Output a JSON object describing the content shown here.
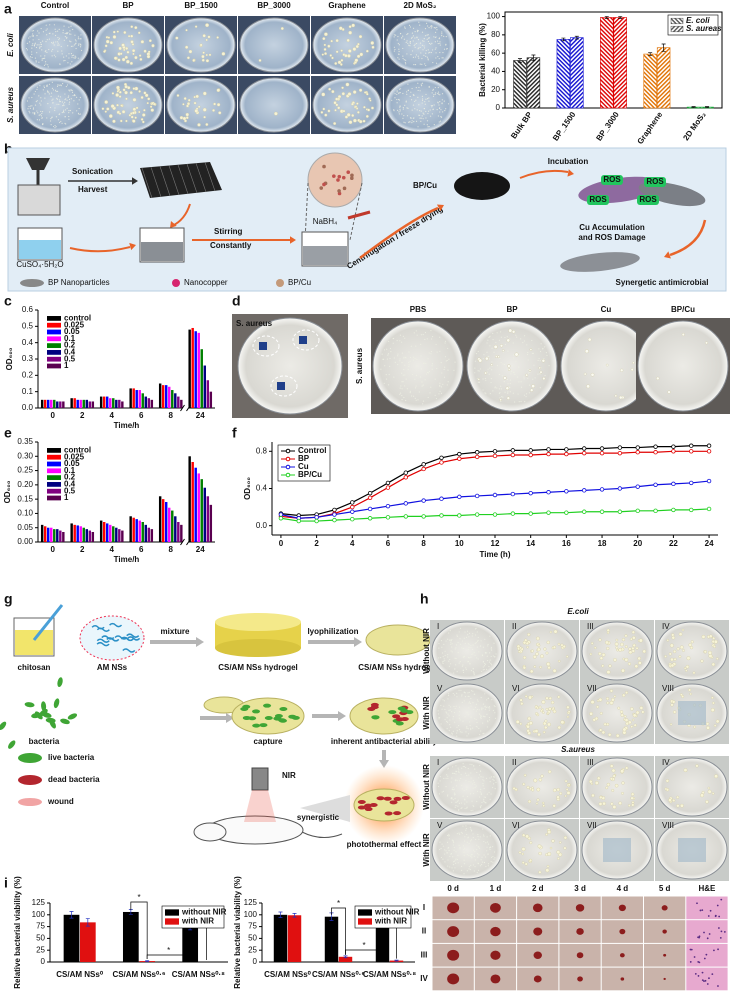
{
  "panel_letters": [
    "a",
    "b",
    "c",
    "d",
    "e",
    "f",
    "g",
    "h",
    "i"
  ],
  "panel_a": {
    "column_labels": [
      "Control",
      "BP",
      "BP_1500",
      "BP_3000",
      "Graphene",
      "2D MoS₂"
    ],
    "row_labels": [
      "E. coli",
      "S. aureus"
    ]
  },
  "panel_b": {
    "sonication": "Sonication",
    "harvest": "Harvest",
    "reagent": "CuSO₄·5H₂O",
    "stirring": [
      "Stirring",
      "Constantly"
    ],
    "reductant": "NaBH₄",
    "separation": "Centrifugation / freeze drying",
    "product": "BP/Cu",
    "incubation": "Incubation",
    "ros_labels": [
      "ROS",
      "ROS",
      "ROS",
      "ROS"
    ],
    "damage": [
      "Cu Accumulation",
      "and ROS Damage"
    ],
    "result": "Synergetic antimicrobial",
    "legend": [
      "BP Nanoparticles",
      "Nanocopper",
      "BP/Cu"
    ]
  },
  "panel_d": {
    "inset_label": "S. aureus",
    "row_label": "S. aureus",
    "column_labels": [
      "PBS",
      "BP",
      "Cu",
      "BP/Cu"
    ]
  },
  "panel_g": {
    "labels": [
      "chitosan",
      "AM NSs",
      "mixture",
      "CS/AM NSs hydrogel",
      "lyophilization",
      "CS/AM NSs hydrogel",
      "bacteria",
      "capture",
      "inherent antibacterial ability",
      "live bacteria",
      "dead bacteria",
      "wound",
      "NIR",
      "synergistic",
      "photothermal effect"
    ]
  },
  "panel_h": {
    "titles": [
      "E.coli",
      "S.aureus"
    ],
    "row_labels": [
      "Without NIR",
      "With NIR"
    ],
    "plate_labels": [
      "I",
      "II",
      "III",
      "IV",
      "V",
      "VI",
      "VII",
      "VIII"
    ]
  },
  "panel_i_photos": {
    "column_labels": [
      "0 d",
      "1 d",
      "2 d",
      "3 d",
      "4 d",
      "5 d",
      "H&E"
    ],
    "row_labels": [
      "I",
      "II",
      "III",
      "IV"
    ]
  },
  "chart_data": [
    {
      "type": "bar",
      "ylabel": "Bacterial killing (%)",
      "categories": [
        "Bulk BP",
        "BP_1500",
        "BP_3000",
        "Graphene",
        "2D MoS₂"
      ],
      "category_colors": [
        "#222222",
        "#1010d0",
        "#dd0000",
        "#e07000",
        "#10a030"
      ],
      "series": [
        {
          "name": "E. coli",
          "hatch": "right",
          "values": [
            52,
            75,
            99,
            59,
            1
          ],
          "errors": [
            2,
            1.5,
            1,
            1.5,
            0.5
          ]
        },
        {
          "name": "S. aureas",
          "hatch": "left",
          "values": [
            55,
            77,
            99,
            66,
            1
          ],
          "errors": [
            3,
            1.5,
            1,
            4,
            0.5
          ]
        }
      ],
      "ylim": [
        0,
        105
      ],
      "yticks": [
        0,
        20,
        40,
        60,
        80,
        100
      ],
      "legend": "upper right"
    },
    {
      "type": "bar",
      "ylabel": "OD₆₀₀",
      "xlabel": "Time/h",
      "categories": [
        "0",
        "2",
        "4",
        "6",
        "8",
        "24"
      ],
      "series": [
        {
          "name": "control",
          "color": "#000000",
          "values": [
            0.05,
            0.06,
            0.07,
            0.12,
            0.15,
            0.48
          ]
        },
        {
          "name": "0.025",
          "color": "#ff0000",
          "values": [
            0.05,
            0.06,
            0.07,
            0.12,
            0.14,
            0.49
          ]
        },
        {
          "name": "0.05",
          "color": "#0000ff",
          "values": [
            0.05,
            0.05,
            0.07,
            0.11,
            0.14,
            0.47
          ]
        },
        {
          "name": "0.1",
          "color": "#ff00ff",
          "values": [
            0.05,
            0.05,
            0.06,
            0.11,
            0.13,
            0.46
          ]
        },
        {
          "name": "0.2",
          "color": "#008000",
          "values": [
            0.05,
            0.05,
            0.06,
            0.09,
            0.11,
            0.36
          ]
        },
        {
          "name": "0.4",
          "color": "#000080",
          "values": [
            0.04,
            0.05,
            0.05,
            0.07,
            0.09,
            0.26
          ]
        },
        {
          "name": "0.5",
          "color": "#800080",
          "values": [
            0.04,
            0.04,
            0.05,
            0.06,
            0.07,
            0.17
          ]
        },
        {
          "name": "1",
          "color": "#5a0050",
          "values": [
            0.04,
            0.04,
            0.04,
            0.05,
            0.05,
            0.1
          ]
        }
      ],
      "ylim": [
        0,
        0.6
      ],
      "yticks": [
        {
          "value": 0,
          "label": "0.0"
        },
        0.1,
        0.2,
        0.3,
        0.4,
        0.5,
        0.6
      ],
      "legend": "upper left"
    },
    {
      "type": "bar",
      "ylabel": "OD₆₀₀",
      "xlabel": "Time/h",
      "categories": [
        "0",
        "2",
        "4",
        "6",
        "8",
        "24"
      ],
      "series": [
        {
          "name": "control",
          "color": "#000000",
          "values": [
            0.06,
            0.065,
            0.075,
            0.09,
            0.16,
            0.3
          ]
        },
        {
          "name": "0.025",
          "color": "#ff0000",
          "values": [
            0.055,
            0.06,
            0.07,
            0.085,
            0.15,
            0.28
          ]
        },
        {
          "name": "0.05",
          "color": "#0000ff",
          "values": [
            0.05,
            0.058,
            0.065,
            0.08,
            0.14,
            0.26
          ]
        },
        {
          "name": "0.1",
          "color": "#ff00ff",
          "values": [
            0.05,
            0.055,
            0.06,
            0.075,
            0.12,
            0.24
          ]
        },
        {
          "name": "0.2",
          "color": "#008000",
          "values": [
            0.045,
            0.05,
            0.055,
            0.07,
            0.11,
            0.22
          ]
        },
        {
          "name": "0.4",
          "color": "#000080",
          "values": [
            0.045,
            0.045,
            0.05,
            0.06,
            0.09,
            0.19
          ]
        },
        {
          "name": "0.5",
          "color": "#800080",
          "values": [
            0.04,
            0.04,
            0.045,
            0.05,
            0.07,
            0.16
          ]
        },
        {
          "name": "1",
          "color": "#5a0050",
          "values": [
            0.035,
            0.035,
            0.04,
            0.045,
            0.06,
            0.13
          ]
        }
      ],
      "ylim": [
        0,
        0.35
      ],
      "yticks": [
        {
          "value": 0,
          "label": "0.00"
        },
        0.05,
        {
          "value": 0.1,
          "label": "0.10"
        },
        0.15,
        {
          "value": 0.2,
          "label": "0.20"
        },
        0.25,
        {
          "value": 0.3,
          "label": "0.30"
        },
        0.35
      ],
      "legend": "upper left"
    },
    {
      "type": "line",
      "ylabel": "OD₆₀₀",
      "xlabel": "Time (h)",
      "x": [
        0,
        1,
        2,
        3,
        4,
        5,
        6,
        7,
        8,
        9,
        10,
        11,
        12,
        13,
        14,
        15,
        16,
        17,
        18,
        19,
        20,
        21,
        22,
        23,
        24
      ],
      "series": [
        {
          "name": "Control",
          "color": "#000000",
          "values": [
            0.13,
            0.11,
            0.12,
            0.17,
            0.25,
            0.35,
            0.46,
            0.57,
            0.66,
            0.73,
            0.77,
            0.79,
            0.8,
            0.81,
            0.81,
            0.82,
            0.82,
            0.83,
            0.83,
            0.84,
            0.84,
            0.85,
            0.85,
            0.86,
            0.86
          ]
        },
        {
          "name": "BP",
          "color": "#e00000",
          "values": [
            0.1,
            0.08,
            0.09,
            0.13,
            0.2,
            0.3,
            0.41,
            0.52,
            0.61,
            0.68,
            0.72,
            0.74,
            0.75,
            0.76,
            0.76,
            0.77,
            0.77,
            0.78,
            0.78,
            0.78,
            0.79,
            0.79,
            0.8,
            0.8,
            0.8
          ]
        },
        {
          "name": "Cu",
          "color": "#1010e0",
          "values": [
            0.12,
            0.08,
            0.09,
            0.12,
            0.15,
            0.18,
            0.21,
            0.24,
            0.27,
            0.29,
            0.31,
            0.32,
            0.33,
            0.34,
            0.35,
            0.36,
            0.37,
            0.38,
            0.39,
            0.4,
            0.42,
            0.44,
            0.45,
            0.46,
            0.48
          ]
        },
        {
          "name": "BP/Cu",
          "color": "#20d020",
          "values": [
            0.08,
            0.05,
            0.05,
            0.06,
            0.07,
            0.08,
            0.09,
            0.1,
            0.1,
            0.11,
            0.11,
            0.12,
            0.12,
            0.13,
            0.13,
            0.14,
            0.14,
            0.15,
            0.15,
            0.15,
            0.16,
            0.16,
            0.17,
            0.17,
            0.18
          ]
        }
      ],
      "xlim": [
        -0.5,
        24.5
      ],
      "xticks": [
        0,
        2,
        4,
        6,
        8,
        10,
        12,
        14,
        16,
        18,
        20,
        22,
        24
      ],
      "ylim": [
        -0.1,
        0.9
      ],
      "yticks": [
        {
          "value": 0,
          "label": "0.0"
        },
        0.4,
        0.8
      ],
      "legend": "upper left"
    },
    {
      "type": "bar",
      "ylabel": "Relative bacterial viability (%)",
      "categories": [
        "CS/AM NSs⁰",
        "CS/AM NSs⁰·⁶",
        "CS/AM NSs⁰·⁸"
      ],
      "series": [
        {
          "name": "without NIR",
          "color": "#000000",
          "values": [
            100,
            106,
            80
          ],
          "errors": [
            7,
            5,
            12
          ]
        },
        {
          "name": "with NIR",
          "color": "#e01010",
          "values": [
            84,
            2,
            null
          ],
          "errors": [
            8,
            1,
            null
          ]
        }
      ],
      "ylim": [
        0,
        125
      ],
      "yticks": [
        0,
        25,
        50,
        75,
        100,
        125
      ],
      "legend": "upper right",
      "annotations": [
        "*",
        "*",
        "*"
      ]
    },
    {
      "type": "bar",
      "ylabel": "Relative bacterial viability (%)",
      "categories": [
        "CS/AM NSs⁰",
        "CS/AM NSs⁰·⁶",
        "CS/AM NSs⁰·⁸"
      ],
      "series": [
        {
          "name": "without NIR",
          "color": "#000000",
          "values": [
            100,
            96,
            84
          ],
          "errors": [
            6,
            8,
            4
          ]
        },
        {
          "name": "with NIR",
          "color": "#e01010",
          "values": [
            99,
            11,
            3
          ],
          "errors": [
            4,
            2,
            1
          ]
        }
      ],
      "ylim": [
        0,
        125
      ],
      "yticks": [
        0,
        25,
        50,
        75,
        100,
        125
      ],
      "legend": "upper right",
      "annotations": [
        "*",
        "*",
        "*"
      ]
    }
  ]
}
